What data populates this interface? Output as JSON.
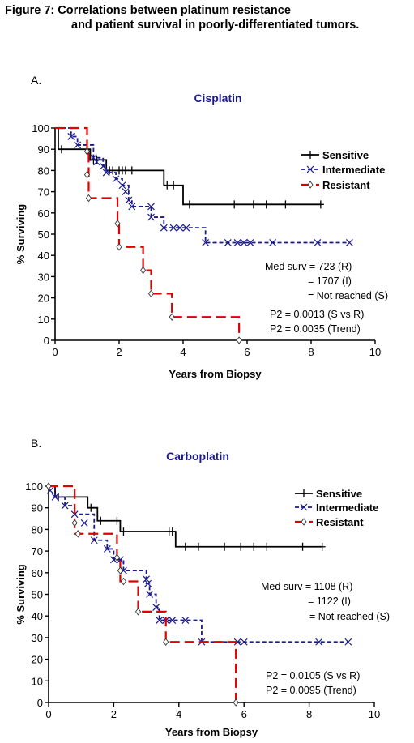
{
  "figure": {
    "title_line1": "Figure 7: Correlations between platinum resistance",
    "title_line2": "and patient survival in poorly-differentiated tumors."
  },
  "chart_data": [
    {
      "type": "line",
      "panel_label": "A.",
      "title": "Cisplatin",
      "xlabel": "Years from Biopsy",
      "ylabel": "% Surviving",
      "xlim": [
        0,
        10
      ],
      "ylim": [
        0,
        100
      ],
      "x_ticks": [
        0,
        2,
        4,
        6,
        8,
        10
      ],
      "y_ticks": [
        0,
        10,
        20,
        30,
        40,
        50,
        60,
        70,
        80,
        90,
        100
      ],
      "legend_position": "top-right",
      "annotations": [
        "Med surv =  723 (R)",
        "= 1707 (I)",
        "=  Not reached (S)",
        "P2 = 0.0013 (S vs R)",
        "P2 = 0.0035 (Trend)"
      ],
      "colors": {
        "Sensitive": "#000000",
        "Intermediate": "#1a1a8c",
        "Resistant": "#e00000",
        "title": "#1a1a8c"
      },
      "series": [
        {
          "name": "Sensitive",
          "style": "solid",
          "marker": "plus",
          "steps": [
            [
              0,
              100
            ],
            [
              0.1,
              90
            ],
            [
              1.1,
              85
            ],
            [
              1.6,
              80
            ],
            [
              3.4,
              73
            ],
            [
              4.0,
              64
            ],
            [
              8.3,
              64
            ]
          ],
          "censored": [
            [
              0.2,
              90
            ],
            [
              1.2,
              85
            ],
            [
              1.3,
              85
            ],
            [
              1.7,
              80
            ],
            [
              1.8,
              80
            ],
            [
              2.0,
              80
            ],
            [
              2.1,
              80
            ],
            [
              2.2,
              80
            ],
            [
              2.4,
              80
            ],
            [
              3.5,
              73
            ],
            [
              3.7,
              73
            ],
            [
              4.2,
              64
            ],
            [
              5.6,
              64
            ],
            [
              6.2,
              64
            ],
            [
              6.6,
              64
            ],
            [
              7.2,
              64
            ],
            [
              8.3,
              64
            ]
          ]
        },
        {
          "name": "Intermediate",
          "style": "dashed",
          "marker": "x",
          "steps": [
            [
              0,
              100
            ],
            [
              0.5,
              96
            ],
            [
              0.7,
              92
            ],
            [
              1.2,
              86
            ],
            [
              1.5,
              82
            ],
            [
              1.6,
              79
            ],
            [
              1.9,
              76
            ],
            [
              2.1,
              73
            ],
            [
              2.3,
              66
            ],
            [
              2.4,
              63
            ],
            [
              3.0,
              58
            ],
            [
              3.4,
              53
            ],
            [
              4.7,
              46
            ],
            [
              9.2,
              46
            ]
          ],
          "censored": [
            [
              0.5,
              96
            ],
            [
              0.7,
              92
            ],
            [
              1.2,
              86
            ],
            [
              1.3,
              84
            ],
            [
              1.5,
              82
            ],
            [
              1.6,
              79
            ],
            [
              1.9,
              76
            ],
            [
              2.1,
              73
            ],
            [
              2.2,
              70
            ],
            [
              2.3,
              66
            ],
            [
              2.4,
              63
            ],
            [
              3.0,
              63
            ],
            [
              3.0,
              58
            ],
            [
              3.4,
              53
            ],
            [
              3.7,
              53
            ],
            [
              3.9,
              53
            ],
            [
              4.1,
              53
            ],
            [
              4.7,
              46
            ],
            [
              5.4,
              46
            ],
            [
              5.7,
              46
            ],
            [
              5.9,
              46
            ],
            [
              6.1,
              46
            ],
            [
              6.8,
              46
            ],
            [
              8.2,
              46
            ],
            [
              9.2,
              46
            ]
          ]
        },
        {
          "name": "Resistant",
          "style": "longdash",
          "marker": "diamond",
          "steps": [
            [
              0,
              100
            ],
            [
              1.0,
              89
            ],
            [
              1.05,
              67
            ],
            [
              1.95,
              55
            ],
            [
              2.0,
              44
            ],
            [
              2.75,
              33
            ],
            [
              3.0,
              22
            ],
            [
              3.65,
              11
            ],
            [
              5.75,
              0
            ]
          ],
          "points": [
            [
              1.0,
              89
            ],
            [
              1.0,
              78
            ],
            [
              1.05,
              67
            ],
            [
              1.95,
              55
            ],
            [
              2.0,
              44
            ],
            [
              2.75,
              33
            ],
            [
              3.0,
              22
            ],
            [
              3.65,
              11
            ],
            [
              5.75,
              0
            ]
          ]
        }
      ]
    },
    {
      "type": "line",
      "panel_label": "B.",
      "title": "Carboplatin",
      "xlabel": "Years from Biopsy",
      "ylabel": "% Surviving",
      "xlim": [
        0,
        10
      ],
      "ylim": [
        0,
        100
      ],
      "x_ticks": [
        0,
        2,
        4,
        6,
        8,
        10
      ],
      "y_ticks": [
        0,
        10,
        20,
        30,
        40,
        50,
        60,
        70,
        80,
        90,
        100
      ],
      "legend_position": "top-right",
      "annotations": [
        "Med surv =  1108 (R)",
        "= 1122 (I)",
        "=  Not reached (S)",
        "P2 = 0.0105 (S vs R)",
        "P2 = 0.0095 (Trend)"
      ],
      "colors": {
        "Sensitive": "#000000",
        "Intermediate": "#1a1a8c",
        "Resistant": "#e00000",
        "title": "#1a1a8c"
      },
      "series": [
        {
          "name": "Sensitive",
          "style": "solid",
          "marker": "plus",
          "steps": [
            [
              0,
              100
            ],
            [
              0.2,
              95
            ],
            [
              1.2,
              90
            ],
            [
              1.5,
              84
            ],
            [
              2.2,
              79
            ],
            [
              3.9,
              72
            ],
            [
              8.4,
              72
            ]
          ],
          "censored": [
            [
              0.3,
              95
            ],
            [
              1.3,
              90
            ],
            [
              1.6,
              84
            ],
            [
              2.1,
              84
            ],
            [
              2.3,
              79
            ],
            [
              3.7,
              79
            ],
            [
              3.8,
              79
            ],
            [
              4.2,
              72
            ],
            [
              4.6,
              72
            ],
            [
              5.4,
              72
            ],
            [
              5.9,
              72
            ],
            [
              6.3,
              72
            ],
            [
              6.7,
              72
            ],
            [
              7.8,
              72
            ],
            [
              8.4,
              72
            ]
          ]
        },
        {
          "name": "Intermediate",
          "style": "dashed",
          "marker": "x",
          "steps": [
            [
              0,
              100
            ],
            [
              0.2,
              95
            ],
            [
              0.5,
              91
            ],
            [
              0.8,
              87
            ],
            [
              1.4,
              75
            ],
            [
              1.8,
              71
            ],
            [
              2.0,
              66
            ],
            [
              2.3,
              61
            ],
            [
              3.0,
              55
            ],
            [
              3.1,
              50
            ],
            [
              3.3,
              44
            ],
            [
              3.4,
              38
            ],
            [
              4.7,
              28
            ],
            [
              9.2,
              28
            ]
          ],
          "censored": [
            [
              0.05,
              98
            ],
            [
              0.2,
              95
            ],
            [
              0.5,
              91
            ],
            [
              0.8,
              87
            ],
            [
              1.1,
              83
            ],
            [
              1.4,
              75
            ],
            [
              1.8,
              71
            ],
            [
              2.0,
              66
            ],
            [
              2.2,
              66
            ],
            [
              2.3,
              61
            ],
            [
              3.0,
              57
            ],
            [
              3.05,
              55
            ],
            [
              3.1,
              50
            ],
            [
              3.3,
              44
            ],
            [
              3.4,
              38
            ],
            [
              3.6,
              38
            ],
            [
              3.8,
              38
            ],
            [
              4.2,
              38
            ],
            [
              4.7,
              28
            ],
            [
              5.8,
              28
            ],
            [
              6.0,
              28
            ],
            [
              8.3,
              28
            ],
            [
              9.2,
              28
            ]
          ]
        },
        {
          "name": "Resistant",
          "style": "longdash",
          "marker": "diamond",
          "steps": [
            [
              0,
              100
            ],
            [
              0.8,
              78
            ],
            [
              2.1,
              67
            ],
            [
              2.2,
              56
            ],
            [
              2.75,
              42
            ],
            [
              3.6,
              28
            ],
            [
              5.75,
              0
            ]
          ],
          "points": [
            [
              0,
              100
            ],
            [
              0.8,
              83
            ],
            [
              0.9,
              78
            ],
            [
              2.1,
              67
            ],
            [
              2.2,
              61
            ],
            [
              2.3,
              56
            ],
            [
              2.75,
              42
            ],
            [
              3.6,
              28
            ],
            [
              5.75,
              0
            ]
          ]
        }
      ]
    }
  ]
}
